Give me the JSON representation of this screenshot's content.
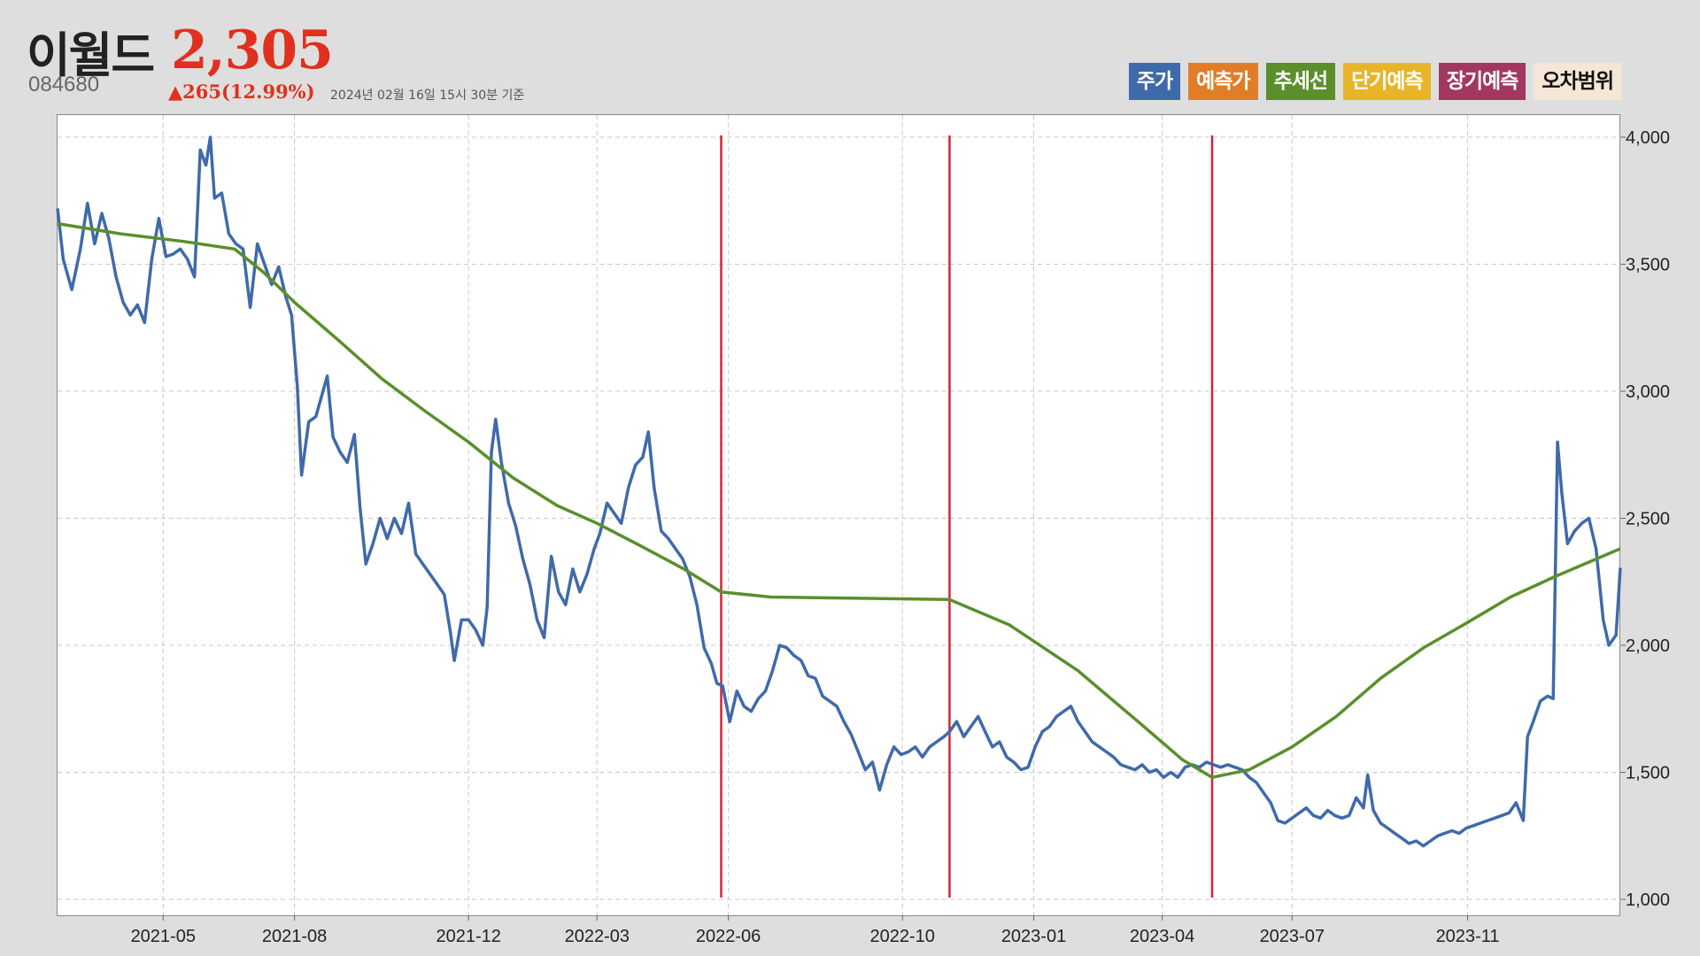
{
  "header": {
    "name": "이월드",
    "price": "2,305",
    "code": "084680",
    "change": "▲265(12.99%)",
    "basis_time": "2024년 02월 16일 15시 30분 기준"
  },
  "legend": [
    {
      "label": "주가",
      "color": "#3f6aaa"
    },
    {
      "label": "예측가",
      "color": "#e07d26"
    },
    {
      "label": "추세선",
      "color": "#5a8f2c"
    },
    {
      "label": "단기예측",
      "color": "#e8b52a"
    },
    {
      "label": "장기예측",
      "color": "#a23860"
    },
    {
      "label": "오차범위",
      "color": "#f5e6d6"
    }
  ],
  "colors": {
    "price_line": "#3f6aaa",
    "trend_line": "#5a8f2c",
    "marker_line": "#d0243c",
    "grid": "#c8c8c8"
  },
  "chart_data": {
    "type": "line",
    "title": "",
    "xlabel": "",
    "ylabel": "",
    "x_range": [
      "2021-02-16",
      "2024-02-16"
    ],
    "ylim": [
      1000,
      4000
    ],
    "y_ticks": [
      1000,
      1500,
      2000,
      2500,
      3000,
      3500,
      4000
    ],
    "y_tick_labels": [
      "1,000",
      "1,500",
      "2,000",
      "2,500",
      "3,000",
      "3,500",
      "4,000"
    ],
    "x_ticks": [
      "2021-05-01",
      "2021-08-01",
      "2021-12-01",
      "2022-03-01",
      "2022-06-01",
      "2022-10-01",
      "2023-01-01",
      "2023-04-01",
      "2023-07-01",
      "2023-11-01"
    ],
    "x_tick_labels": [
      "2021-05",
      "2021-08",
      "2021-12",
      "2022-03",
      "2022-06",
      "2022-10",
      "2023-01",
      "2023-04",
      "2023-07",
      "2023-11"
    ],
    "grid": true,
    "legend_position": "top-right",
    "vertical_markers": [
      "2022-05-27",
      "2022-11-03",
      "2023-05-06"
    ],
    "series": [
      {
        "name": "주가",
        "points": [
          [
            "2021-02-16",
            3720
          ],
          [
            "2021-02-20",
            3520
          ],
          [
            "2021-02-26",
            3400
          ],
          [
            "2021-03-04",
            3560
          ],
          [
            "2021-03-09",
            3740
          ],
          [
            "2021-03-14",
            3580
          ],
          [
            "2021-03-19",
            3700
          ],
          [
            "2021-03-24",
            3600
          ],
          [
            "2021-03-29",
            3450
          ],
          [
            "2021-04-03",
            3350
          ],
          [
            "2021-04-08",
            3300
          ],
          [
            "2021-04-13",
            3340
          ],
          [
            "2021-04-18",
            3270
          ],
          [
            "2021-04-23",
            3520
          ],
          [
            "2021-04-28",
            3680
          ],
          [
            "2021-05-03",
            3530
          ],
          [
            "2021-05-08",
            3540
          ],
          [
            "2021-05-13",
            3560
          ],
          [
            "2021-05-18",
            3520
          ],
          [
            "2021-05-23",
            3450
          ],
          [
            "2021-05-27",
            3950
          ],
          [
            "2021-05-31",
            3890
          ],
          [
            "2021-06-03",
            4000
          ],
          [
            "2021-06-06",
            3760
          ],
          [
            "2021-06-11",
            3780
          ],
          [
            "2021-06-16",
            3620
          ],
          [
            "2021-06-21",
            3580
          ],
          [
            "2021-06-26",
            3560
          ],
          [
            "2021-07-01",
            3330
          ],
          [
            "2021-07-06",
            3580
          ],
          [
            "2021-07-11",
            3500
          ],
          [
            "2021-07-16",
            3420
          ],
          [
            "2021-07-21",
            3490
          ],
          [
            "2021-07-26",
            3370
          ],
          [
            "2021-07-30",
            3300
          ],
          [
            "2021-08-03",
            3020
          ],
          [
            "2021-08-06",
            2670
          ],
          [
            "2021-08-11",
            2880
          ],
          [
            "2021-08-16",
            2900
          ],
          [
            "2021-08-21",
            3000
          ],
          [
            "2021-08-24",
            3060
          ],
          [
            "2021-08-28",
            2820
          ],
          [
            "2021-09-02",
            2760
          ],
          [
            "2021-09-07",
            2720
          ],
          [
            "2021-09-12",
            2830
          ],
          [
            "2021-09-16",
            2540
          ],
          [
            "2021-09-20",
            2320
          ],
          [
            "2021-09-25",
            2400
          ],
          [
            "2021-09-30",
            2500
          ],
          [
            "2021-10-05",
            2420
          ],
          [
            "2021-10-10",
            2500
          ],
          [
            "2021-10-15",
            2440
          ],
          [
            "2021-10-20",
            2560
          ],
          [
            "2021-10-25",
            2360
          ],
          [
            "2021-10-30",
            2320
          ],
          [
            "2021-11-04",
            2280
          ],
          [
            "2021-11-09",
            2240
          ],
          [
            "2021-11-14",
            2200
          ],
          [
            "2021-11-18",
            2060
          ],
          [
            "2021-11-21",
            1940
          ],
          [
            "2021-11-26",
            2100
          ],
          [
            "2021-12-01",
            2100
          ],
          [
            "2021-12-06",
            2060
          ],
          [
            "2021-12-11",
            2000
          ],
          [
            "2021-12-14",
            2150
          ],
          [
            "2021-12-17",
            2760
          ],
          [
            "2021-12-20",
            2890
          ],
          [
            "2021-12-24",
            2720
          ],
          [
            "2021-12-29",
            2560
          ],
          [
            "2022-01-03",
            2470
          ],
          [
            "2022-01-08",
            2340
          ],
          [
            "2022-01-13",
            2240
          ],
          [
            "2022-01-18",
            2100
          ],
          [
            "2022-01-23",
            2030
          ],
          [
            "2022-01-28",
            2350
          ],
          [
            "2022-02-02",
            2210
          ],
          [
            "2022-02-07",
            2160
          ],
          [
            "2022-02-12",
            2300
          ],
          [
            "2022-02-17",
            2210
          ],
          [
            "2022-02-22",
            2280
          ],
          [
            "2022-02-27",
            2380
          ],
          [
            "2022-03-03",
            2440
          ],
          [
            "2022-03-08",
            2560
          ],
          [
            "2022-03-13",
            2520
          ],
          [
            "2022-03-18",
            2480
          ],
          [
            "2022-03-23",
            2620
          ],
          [
            "2022-03-28",
            2710
          ],
          [
            "2022-04-02",
            2740
          ],
          [
            "2022-04-06",
            2840
          ],
          [
            "2022-04-10",
            2620
          ],
          [
            "2022-04-15",
            2450
          ],
          [
            "2022-04-20",
            2420
          ],
          [
            "2022-04-25",
            2380
          ],
          [
            "2022-04-30",
            2340
          ],
          [
            "2022-05-05",
            2270
          ],
          [
            "2022-05-10",
            2160
          ],
          [
            "2022-05-15",
            1990
          ],
          [
            "2022-05-20",
            1930
          ],
          [
            "2022-05-24",
            1850
          ],
          [
            "2022-05-28",
            1840
          ],
          [
            "2022-06-02",
            1700
          ],
          [
            "2022-06-07",
            1820
          ],
          [
            "2022-06-12",
            1760
          ],
          [
            "2022-06-17",
            1740
          ],
          [
            "2022-06-22",
            1790
          ],
          [
            "2022-06-27",
            1820
          ],
          [
            "2022-07-02",
            1900
          ],
          [
            "2022-07-07",
            2000
          ],
          [
            "2022-07-12",
            1990
          ],
          [
            "2022-07-17",
            1960
          ],
          [
            "2022-07-22",
            1940
          ],
          [
            "2022-07-27",
            1880
          ],
          [
            "2022-08-01",
            1870
          ],
          [
            "2022-08-06",
            1800
          ],
          [
            "2022-08-11",
            1780
          ],
          [
            "2022-08-16",
            1760
          ],
          [
            "2022-08-21",
            1700
          ],
          [
            "2022-08-26",
            1650
          ],
          [
            "2022-08-31",
            1580
          ],
          [
            "2022-09-05",
            1510
          ],
          [
            "2022-09-10",
            1540
          ],
          [
            "2022-09-15",
            1430
          ],
          [
            "2022-09-20",
            1530
          ],
          [
            "2022-09-25",
            1600
          ],
          [
            "2022-09-30",
            1570
          ],
          [
            "2022-10-05",
            1580
          ],
          [
            "2022-10-10",
            1600
          ],
          [
            "2022-10-15",
            1560
          ],
          [
            "2022-10-20",
            1600
          ],
          [
            "2022-10-25",
            1620
          ],
          [
            "2022-10-30",
            1640
          ],
          [
            "2022-11-03",
            1660
          ],
          [
            "2022-11-08",
            1700
          ],
          [
            "2022-11-13",
            1640
          ],
          [
            "2022-11-18",
            1680
          ],
          [
            "2022-11-23",
            1720
          ],
          [
            "2022-11-28",
            1660
          ],
          [
            "2022-12-03",
            1600
          ],
          [
            "2022-12-08",
            1620
          ],
          [
            "2022-12-13",
            1560
          ],
          [
            "2022-12-18",
            1540
          ],
          [
            "2022-12-23",
            1510
          ],
          [
            "2022-12-28",
            1520
          ],
          [
            "2023-01-02",
            1600
          ],
          [
            "2023-01-07",
            1660
          ],
          [
            "2023-01-12",
            1680
          ],
          [
            "2023-01-17",
            1720
          ],
          [
            "2023-01-22",
            1740
          ],
          [
            "2023-01-27",
            1760
          ],
          [
            "2023-02-01",
            1700
          ],
          [
            "2023-02-06",
            1660
          ],
          [
            "2023-02-11",
            1620
          ],
          [
            "2023-02-16",
            1600
          ],
          [
            "2023-02-21",
            1580
          ],
          [
            "2023-02-26",
            1560
          ],
          [
            "2023-03-03",
            1530
          ],
          [
            "2023-03-08",
            1520
          ],
          [
            "2023-03-13",
            1510
          ],
          [
            "2023-03-18",
            1530
          ],
          [
            "2023-03-23",
            1500
          ],
          [
            "2023-03-28",
            1510
          ],
          [
            "2023-04-02",
            1480
          ],
          [
            "2023-04-07",
            1500
          ],
          [
            "2023-04-12",
            1480
          ],
          [
            "2023-04-17",
            1520
          ],
          [
            "2023-04-22",
            1530
          ],
          [
            "2023-04-27",
            1520
          ],
          [
            "2023-05-02",
            1540
          ],
          [
            "2023-05-07",
            1530
          ],
          [
            "2023-05-12",
            1520
          ],
          [
            "2023-05-17",
            1530
          ],
          [
            "2023-05-22",
            1520
          ],
          [
            "2023-05-27",
            1510
          ],
          [
            "2023-06-01",
            1480
          ],
          [
            "2023-06-06",
            1460
          ],
          [
            "2023-06-11",
            1420
          ],
          [
            "2023-06-16",
            1380
          ],
          [
            "2023-06-21",
            1310
          ],
          [
            "2023-06-26",
            1300
          ],
          [
            "2023-07-01",
            1320
          ],
          [
            "2023-07-06",
            1340
          ],
          [
            "2023-07-11",
            1360
          ],
          [
            "2023-07-16",
            1330
          ],
          [
            "2023-07-21",
            1320
          ],
          [
            "2023-07-26",
            1350
          ],
          [
            "2023-07-31",
            1330
          ],
          [
            "2023-08-05",
            1320
          ],
          [
            "2023-08-10",
            1330
          ],
          [
            "2023-08-15",
            1400
          ],
          [
            "2023-08-20",
            1360
          ],
          [
            "2023-08-23",
            1490
          ],
          [
            "2023-08-27",
            1350
          ],
          [
            "2023-09-01",
            1300
          ],
          [
            "2023-09-06",
            1280
          ],
          [
            "2023-09-11",
            1260
          ],
          [
            "2023-09-16",
            1240
          ],
          [
            "2023-09-21",
            1220
          ],
          [
            "2023-09-26",
            1230
          ],
          [
            "2023-10-01",
            1210
          ],
          [
            "2023-10-06",
            1230
          ],
          [
            "2023-10-11",
            1250
          ],
          [
            "2023-10-16",
            1260
          ],
          [
            "2023-10-21",
            1270
          ],
          [
            "2023-10-26",
            1260
          ],
          [
            "2023-10-31",
            1280
          ],
          [
            "2023-11-05",
            1290
          ],
          [
            "2023-11-10",
            1300
          ],
          [
            "2023-11-15",
            1310
          ],
          [
            "2023-11-20",
            1320
          ],
          [
            "2023-11-25",
            1330
          ],
          [
            "2023-11-30",
            1340
          ],
          [
            "2023-12-05",
            1380
          ],
          [
            "2023-12-10",
            1310
          ],
          [
            "2023-12-13",
            1640
          ],
          [
            "2023-12-17",
            1700
          ],
          [
            "2023-12-22",
            1780
          ],
          [
            "2023-12-27",
            1800
          ],
          [
            "2023-12-31",
            1790
          ],
          [
            "2024-01-03",
            2800
          ],
          [
            "2024-01-06",
            2600
          ],
          [
            "2024-01-10",
            2400
          ],
          [
            "2024-01-15",
            2450
          ],
          [
            "2024-01-20",
            2480
          ],
          [
            "2024-01-25",
            2500
          ],
          [
            "2024-01-30",
            2380
          ],
          [
            "2024-02-04",
            2100
          ],
          [
            "2024-02-08",
            2000
          ],
          [
            "2024-02-13",
            2040
          ],
          [
            "2024-02-16",
            2305
          ]
        ]
      },
      {
        "name": "추세선",
        "points": [
          [
            "2021-02-16",
            3660
          ],
          [
            "2021-04-01",
            3620
          ],
          [
            "2021-05-15",
            3590
          ],
          [
            "2021-06-20",
            3560
          ],
          [
            "2021-07-10",
            3470
          ],
          [
            "2021-08-01",
            3350
          ],
          [
            "2021-09-01",
            3200
          ],
          [
            "2021-10-01",
            3050
          ],
          [
            "2021-11-01",
            2920
          ],
          [
            "2021-12-01",
            2800
          ],
          [
            "2022-01-01",
            2660
          ],
          [
            "2022-02-01",
            2550
          ],
          [
            "2022-03-01",
            2480
          ],
          [
            "2022-04-01",
            2390
          ],
          [
            "2022-05-01",
            2300
          ],
          [
            "2022-05-27",
            2210
          ],
          [
            "2022-07-01",
            2190
          ],
          [
            "2022-09-01",
            2185
          ],
          [
            "2022-11-03",
            2180
          ],
          [
            "2022-12-15",
            2080
          ],
          [
            "2023-02-01",
            1900
          ],
          [
            "2023-03-15",
            1700
          ],
          [
            "2023-04-15",
            1550
          ],
          [
            "2023-05-06",
            1480
          ],
          [
            "2023-06-01",
            1510
          ],
          [
            "2023-07-01",
            1600
          ],
          [
            "2023-08-01",
            1720
          ],
          [
            "2023-09-01",
            1870
          ],
          [
            "2023-10-01",
            1990
          ],
          [
            "2023-11-01",
            2090
          ],
          [
            "2023-12-01",
            2190
          ],
          [
            "2024-01-01",
            2270
          ],
          [
            "2024-02-16",
            2380
          ]
        ]
      }
    ]
  }
}
